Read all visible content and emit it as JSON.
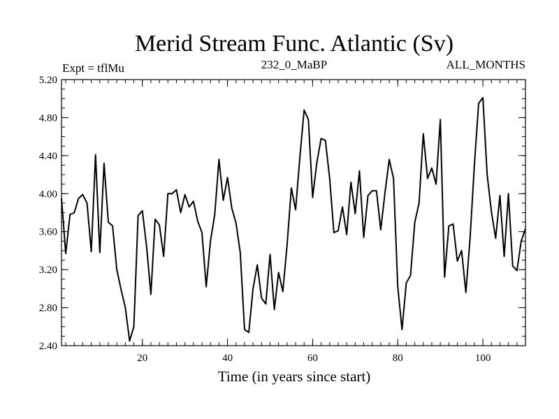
{
  "chart_data": {
    "type": "line",
    "title": "Merid Stream Func. Atlantic (Sv)",
    "subtitle_left": "Expt = tflMu",
    "subtitle_center": "232_0_MaBP",
    "subtitle_right": "ALL_MONTHS",
    "xlabel": "Time (in years since start)",
    "ylabel": "",
    "xlim": [
      1,
      110
    ],
    "ylim": [
      2.4,
      5.2
    ],
    "xticks": [
      20,
      40,
      60,
      80,
      100
    ],
    "xtick_labels": [
      "20",
      "40",
      "60",
      "80",
      "100"
    ],
    "yticks": [
      2.4,
      2.8,
      3.2,
      3.6,
      4.0,
      4.4,
      4.8,
      5.2
    ],
    "ytick_labels": [
      "2.40",
      "2.80",
      "3.20",
      "3.60",
      "4.00",
      "4.40",
      "4.80",
      "5.20"
    ],
    "grid": false,
    "series": [
      {
        "name": "Merid Stream Func.",
        "x": [
          1,
          2,
          3,
          4,
          5,
          6,
          7,
          8,
          9,
          10,
          11,
          12,
          13,
          14,
          15,
          16,
          17,
          18,
          19,
          20,
          21,
          22,
          23,
          24,
          25,
          26,
          27,
          28,
          29,
          30,
          31,
          32,
          33,
          34,
          35,
          36,
          37,
          38,
          39,
          40,
          41,
          42,
          43,
          44,
          45,
          46,
          47,
          48,
          49,
          50,
          51,
          52,
          53,
          54,
          55,
          56,
          57,
          58,
          59,
          60,
          61,
          62,
          63,
          64,
          65,
          66,
          67,
          68,
          69,
          70,
          71,
          72,
          73,
          74,
          75,
          76,
          77,
          78,
          79,
          80,
          81,
          82,
          83,
          84,
          85,
          86,
          87,
          88,
          89,
          90,
          91,
          92,
          93,
          94,
          95,
          96,
          97,
          98,
          99,
          100,
          101,
          102,
          103,
          104,
          105,
          106,
          107,
          108,
          109,
          110
        ],
        "values": [
          3.95,
          3.37,
          3.78,
          3.8,
          3.95,
          3.99,
          3.9,
          3.39,
          4.41,
          3.38,
          4.32,
          3.7,
          3.66,
          3.2,
          2.99,
          2.8,
          2.45,
          2.6,
          3.77,
          3.82,
          3.44,
          2.94,
          3.73,
          3.67,
          3.34,
          4.0,
          4.0,
          4.04,
          3.8,
          3.99,
          3.86,
          3.92,
          3.71,
          3.59,
          3.02,
          3.5,
          3.78,
          4.36,
          3.93,
          4.17,
          3.85,
          3.69,
          3.38,
          2.57,
          2.54,
          3.0,
          3.25,
          2.9,
          2.84,
          3.36,
          2.78,
          3.17,
          2.97,
          3.46,
          4.06,
          3.83,
          4.38,
          4.88,
          4.78,
          3.96,
          4.33,
          4.58,
          4.56,
          4.16,
          3.59,
          3.61,
          3.86,
          3.57,
          4.12,
          3.79,
          4.24,
          3.54,
          3.98,
          4.03,
          4.03,
          3.62,
          4.01,
          4.36,
          4.16,
          3.02,
          2.57,
          3.06,
          3.14,
          3.7,
          3.9,
          4.63,
          4.16,
          4.27,
          4.1,
          4.78,
          3.12,
          3.66,
          3.68,
          3.29,
          3.4,
          2.96,
          3.54,
          4.3,
          4.95,
          5.01,
          4.2,
          3.81,
          3.53,
          3.98,
          3.34,
          4.0,
          3.24,
          3.19,
          3.5,
          3.63
        ]
      }
    ]
  }
}
